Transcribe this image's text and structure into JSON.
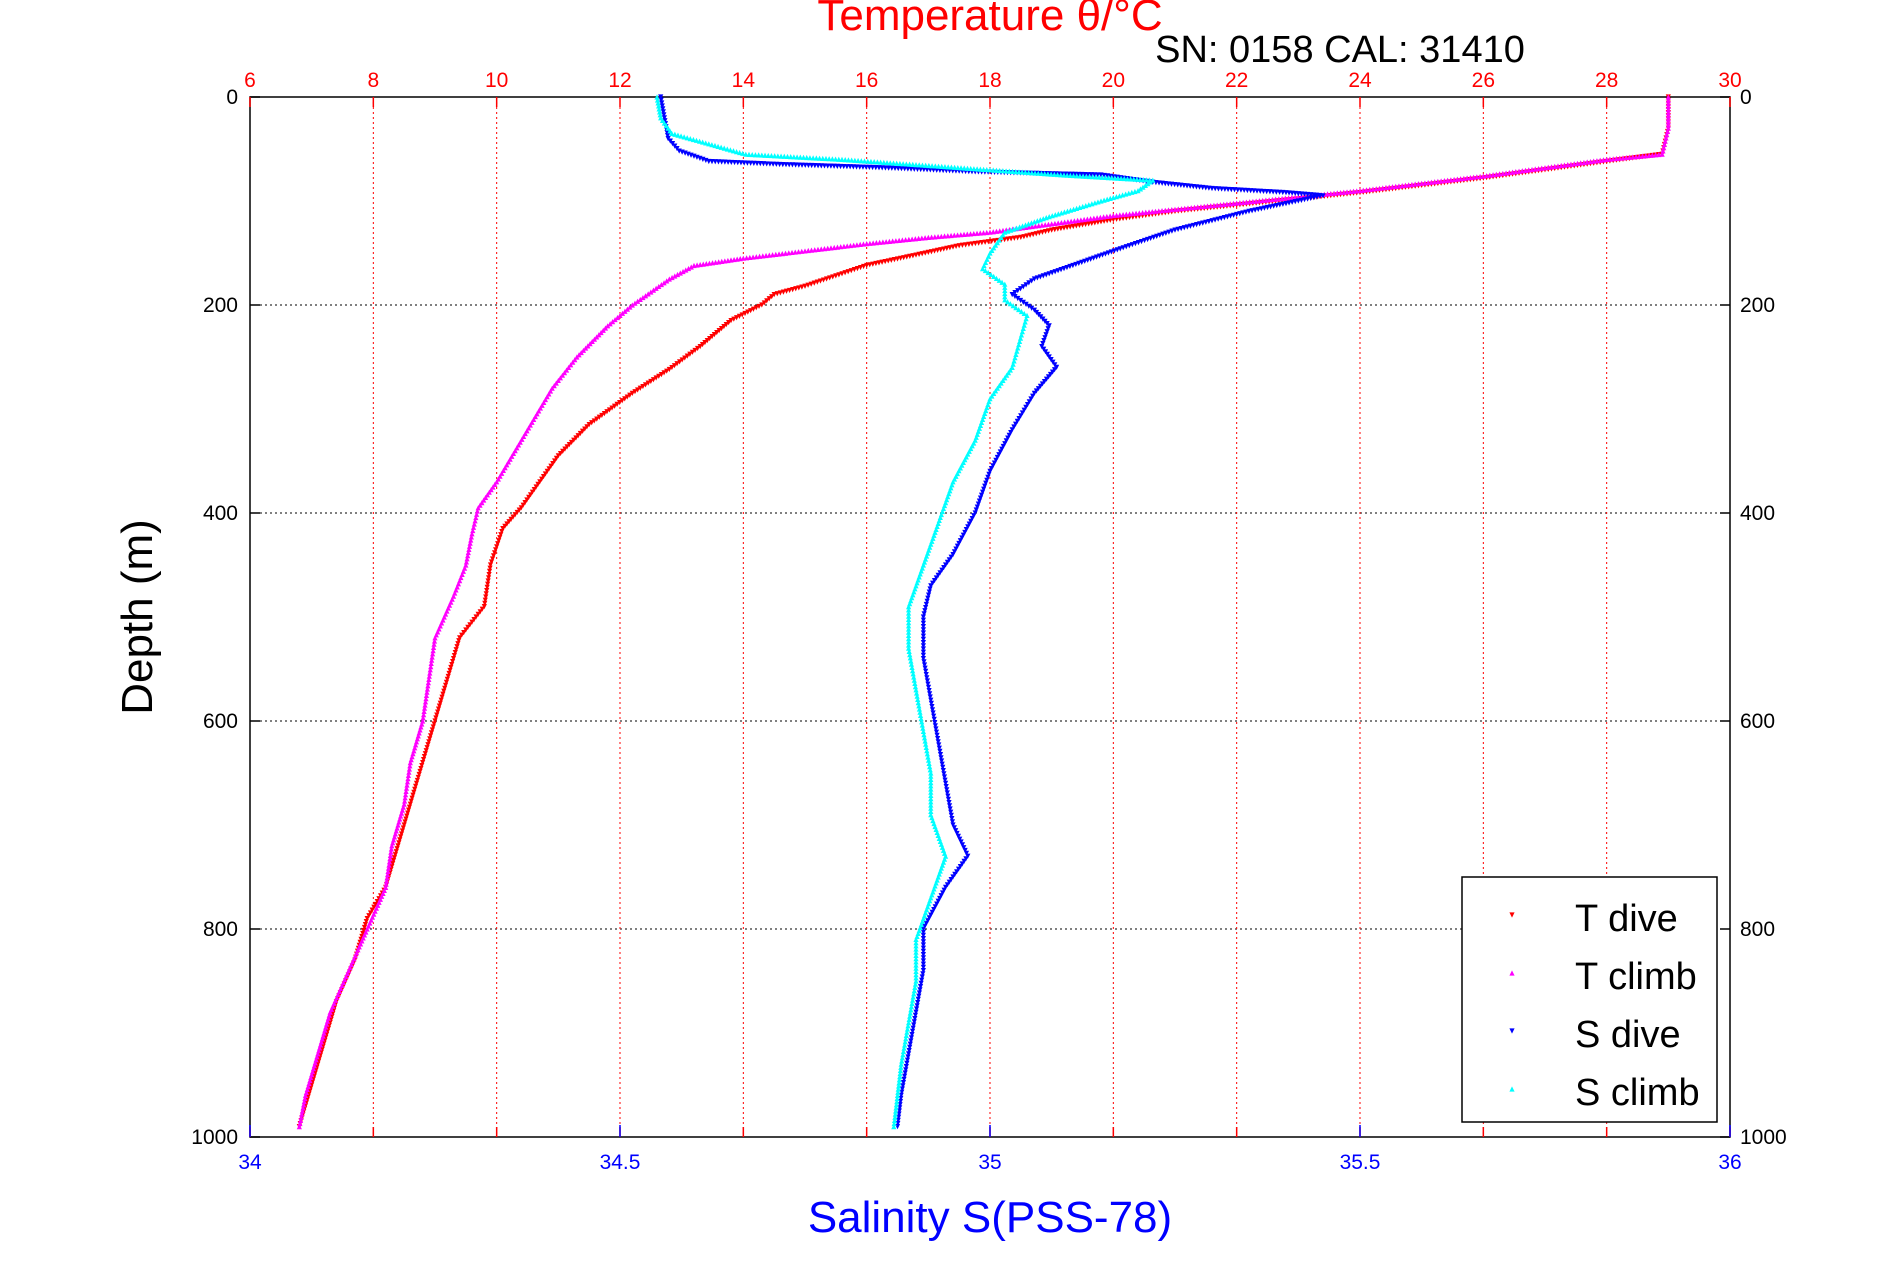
{
  "chart_data": {
    "type": "scatter",
    "title": "Temperature θ/°C",
    "subtitle": "SN: 0158  CAL: 31410",
    "ylabel": "Depth (m)",
    "xlabel_bottom": "Salinity S(PSS-78)",
    "ylim": [
      0,
      1000
    ],
    "y_inverted": true,
    "xlim_temperature": [
      6,
      30
    ],
    "xlim_salinity": [
      34,
      36
    ],
    "ticks": {
      "depth": [
        "0",
        "200",
        "400",
        "600",
        "800",
        "1000"
      ],
      "temperature": [
        "6",
        "8",
        "10",
        "12",
        "14",
        "16",
        "18",
        "20",
        "22",
        "24",
        "26",
        "28",
        "30"
      ],
      "salinity": [
        "34",
        "34.5",
        "35",
        "35.5",
        "36"
      ]
    },
    "grid": true,
    "legend_position": "bottom-right",
    "colors": {
      "temperature_axis": "#ff0000",
      "salinity_axis": "#0000ff",
      "t_dive": "#ff0000",
      "t_climb": "#ff00ff",
      "s_dive": "#0000ff",
      "s_climb": "#00ffff"
    },
    "series": [
      {
        "name": "T dive",
        "axis": "temperature",
        "points": [
          [
            29.0,
            0
          ],
          [
            29.0,
            30
          ],
          [
            28.9,
            55
          ],
          [
            28.0,
            62
          ],
          [
            27.0,
            70
          ],
          [
            26.0,
            78
          ],
          [
            25.0,
            85
          ],
          [
            24.0,
            92
          ],
          [
            23.0,
            98
          ],
          [
            22.0,
            104
          ],
          [
            21.0,
            110
          ],
          [
            20.0,
            118
          ],
          [
            19.0,
            128
          ],
          [
            18.5,
            135
          ],
          [
            17.5,
            143
          ],
          [
            16.8,
            152
          ],
          [
            16.0,
            162
          ],
          [
            15.5,
            172
          ],
          [
            15.0,
            182
          ],
          [
            14.5,
            190
          ],
          [
            14.3,
            200
          ],
          [
            13.8,
            215
          ],
          [
            13.3,
            240
          ],
          [
            12.8,
            262
          ],
          [
            12.2,
            285
          ],
          [
            11.5,
            315
          ],
          [
            11.0,
            345
          ],
          [
            10.7,
            370
          ],
          [
            10.4,
            395
          ],
          [
            10.1,
            415
          ],
          [
            9.9,
            450
          ],
          [
            9.8,
            490
          ],
          [
            9.4,
            520
          ],
          [
            9.2,
            560
          ],
          [
            9.0,
            600
          ],
          [
            8.8,
            640
          ],
          [
            8.6,
            680
          ],
          [
            8.4,
            720
          ],
          [
            8.2,
            760
          ],
          [
            7.9,
            790
          ],
          [
            7.7,
            830
          ],
          [
            7.4,
            870
          ],
          [
            7.2,
            910
          ],
          [
            7.0,
            950
          ],
          [
            6.8,
            990
          ]
        ]
      },
      {
        "name": "T climb",
        "axis": "temperature",
        "points": [
          [
            29.0,
            0
          ],
          [
            29.0,
            30
          ],
          [
            28.9,
            55
          ],
          [
            28.0,
            60
          ],
          [
            27.0,
            68
          ],
          [
            26.0,
            76
          ],
          [
            25.0,
            83
          ],
          [
            24.0,
            90
          ],
          [
            23.0,
            96
          ],
          [
            22.0,
            102
          ],
          [
            21.0,
            108
          ],
          [
            20.0,
            114
          ],
          [
            19.0,
            122
          ],
          [
            18.0,
            130
          ],
          [
            17.0,
            135
          ],
          [
            16.0,
            141
          ],
          [
            15.0,
            148
          ],
          [
            14.0,
            155
          ],
          [
            13.2,
            162
          ],
          [
            12.8,
            175
          ],
          [
            12.2,
            200
          ],
          [
            11.8,
            220
          ],
          [
            11.3,
            250
          ],
          [
            10.9,
            280
          ],
          [
            10.6,
            310
          ],
          [
            10.3,
            340
          ],
          [
            10.0,
            370
          ],
          [
            9.7,
            395
          ],
          [
            9.6,
            420
          ],
          [
            9.5,
            450
          ],
          [
            9.3,
            480
          ],
          [
            9.0,
            520
          ],
          [
            8.9,
            560
          ],
          [
            8.8,
            600
          ],
          [
            8.6,
            640
          ],
          [
            8.5,
            680
          ],
          [
            8.3,
            720
          ],
          [
            8.2,
            760
          ],
          [
            7.9,
            800
          ],
          [
            7.6,
            840
          ],
          [
            7.3,
            880
          ],
          [
            7.1,
            920
          ],
          [
            6.9,
            960
          ],
          [
            6.8,
            990
          ]
        ]
      },
      {
        "name": "S dive",
        "axis": "salinity",
        "points": [
          [
            34.555,
            0
          ],
          [
            34.56,
            20
          ],
          [
            34.565,
            40
          ],
          [
            34.58,
            52
          ],
          [
            34.62,
            62
          ],
          [
            34.72,
            65
          ],
          [
            34.85,
            68
          ],
          [
            34.98,
            72
          ],
          [
            35.15,
            75
          ],
          [
            35.22,
            82
          ],
          [
            35.3,
            88
          ],
          [
            35.4,
            92
          ],
          [
            35.45,
            95
          ],
          [
            35.35,
            110
          ],
          [
            35.25,
            128
          ],
          [
            35.18,
            145
          ],
          [
            35.12,
            160
          ],
          [
            35.06,
            175
          ],
          [
            35.03,
            190
          ],
          [
            35.06,
            205
          ],
          [
            35.08,
            220
          ],
          [
            35.07,
            240
          ],
          [
            35.09,
            260
          ],
          [
            35.06,
            285
          ],
          [
            35.03,
            320
          ],
          [
            35.0,
            360
          ],
          [
            34.98,
            400
          ],
          [
            34.95,
            440
          ],
          [
            34.92,
            470
          ],
          [
            34.91,
            500
          ],
          [
            34.91,
            540
          ],
          [
            34.92,
            580
          ],
          [
            34.93,
            620
          ],
          [
            34.94,
            660
          ],
          [
            34.95,
            700
          ],
          [
            34.97,
            730
          ],
          [
            34.94,
            760
          ],
          [
            34.91,
            800
          ],
          [
            34.91,
            840
          ],
          [
            34.9,
            880
          ],
          [
            34.89,
            920
          ],
          [
            34.88,
            960
          ],
          [
            34.875,
            990
          ]
        ]
      },
      {
        "name": "S climb",
        "axis": "salinity",
        "points": [
          [
            34.55,
            0
          ],
          [
            34.555,
            20
          ],
          [
            34.57,
            35
          ],
          [
            34.62,
            45
          ],
          [
            34.67,
            55
          ],
          [
            34.8,
            60
          ],
          [
            34.9,
            65
          ],
          [
            35.0,
            70
          ],
          [
            35.1,
            75
          ],
          [
            35.22,
            80
          ],
          [
            35.2,
            90
          ],
          [
            35.15,
            100
          ],
          [
            35.08,
            115
          ],
          [
            35.02,
            130
          ],
          [
            35.0,
            150
          ],
          [
            34.99,
            165
          ],
          [
            35.02,
            180
          ],
          [
            35.02,
            195
          ],
          [
            35.05,
            210
          ],
          [
            35.04,
            235
          ],
          [
            35.03,
            260
          ],
          [
            35.0,
            290
          ],
          [
            34.98,
            330
          ],
          [
            34.95,
            370
          ],
          [
            34.93,
            410
          ],
          [
            34.91,
            450
          ],
          [
            34.89,
            490
          ],
          [
            34.89,
            530
          ],
          [
            34.9,
            570
          ],
          [
            34.91,
            610
          ],
          [
            34.92,
            650
          ],
          [
            34.92,
            690
          ],
          [
            34.94,
            730
          ],
          [
            34.92,
            770
          ],
          [
            34.9,
            810
          ],
          [
            34.9,
            850
          ],
          [
            34.89,
            890
          ],
          [
            34.88,
            930
          ],
          [
            34.875,
            960
          ],
          [
            34.87,
            990
          ]
        ]
      }
    ]
  }
}
